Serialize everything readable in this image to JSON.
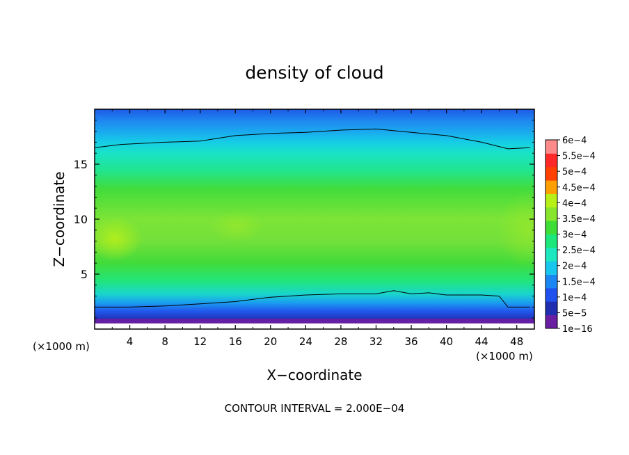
{
  "chart_data": {
    "type": "heatmap",
    "title": "density of cloud",
    "xlabel": "X−coordinate",
    "ylabel": "Z−coordinate",
    "x_unit_left": "(×1000 m)",
    "x_unit_right": "(×1000 m)",
    "footer": "CONTOUR INTERVAL = 2.000E−04",
    "xlim": [
      0,
      50
    ],
    "ylim": [
      0,
      20
    ],
    "x_ticks": [
      4,
      8,
      12,
      16,
      20,
      24,
      28,
      32,
      36,
      40,
      44,
      48
    ],
    "y_ticks": [
      5,
      10,
      15
    ],
    "grid": false,
    "legend_position": "right",
    "colorbar": {
      "levels": [
        "1e−16",
        "5e−5",
        "1e−4",
        "1.5e−4",
        "2e−4",
        "2.5e−4",
        "3e−4",
        "3.5e−4",
        "4e−4",
        "4.5e−4",
        "5e−4",
        "5.5e−4",
        "6e−4"
      ],
      "colors": [
        "#6a1fa3",
        "#1f2fb0",
        "#2050ee",
        "#1c86f2",
        "#19c6ee",
        "#1de7bf",
        "#1de67a",
        "#3fdd37",
        "#86e52c",
        "#b7ef18",
        "#ffa000",
        "#ff4000",
        "#ff2828",
        "#ff8a8a"
      ]
    },
    "contour_lines": [
      {
        "name": "upper",
        "x": [
          0,
          3,
          8,
          12,
          16,
          20,
          24,
          28,
          32,
          36,
          40,
          44,
          47,
          49.5
        ],
        "z": [
          16.5,
          16.8,
          17.0,
          17.1,
          17.6,
          17.8,
          17.9,
          18.1,
          18.2,
          17.9,
          17.6,
          17.0,
          16.4,
          16.5
        ]
      },
      {
        "name": "lower",
        "x": [
          0,
          4,
          8,
          12,
          16,
          20,
          24,
          28,
          32,
          34,
          36,
          38,
          40,
          44,
          46,
          47,
          49.5
        ],
        "z": [
          2.0,
          2.0,
          2.1,
          2.3,
          2.5,
          2.9,
          3.1,
          3.2,
          3.2,
          3.5,
          3.2,
          3.3,
          3.1,
          3.1,
          3.0,
          2.0,
          2.0
        ]
      }
    ]
  }
}
